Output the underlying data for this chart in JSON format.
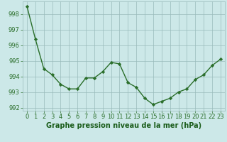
{
  "x": [
    0,
    1,
    2,
    3,
    4,
    5,
    6,
    7,
    8,
    9,
    10,
    11,
    12,
    13,
    14,
    15,
    16,
    17,
    18,
    19,
    20,
    21,
    22,
    23
  ],
  "y": [
    998.5,
    996.4,
    994.5,
    994.1,
    993.5,
    993.2,
    993.2,
    993.9,
    993.9,
    994.3,
    994.9,
    994.8,
    993.6,
    993.3,
    992.6,
    992.2,
    992.4,
    992.6,
    993.0,
    993.2,
    993.8,
    994.1,
    994.7,
    995.1
  ],
  "line_color": "#2a6e2a",
  "marker": "D",
  "marker_size": 2.2,
  "line_width": 1.0,
  "xlabel": "Graphe pression niveau de la mer (hPa)",
  "xlabel_fontsize": 7.0,
  "xlabel_color": "#1a5c1a",
  "background_color": "#cce8e8",
  "grid_color": "#99bbbb",
  "tick_fontsize": 6.0,
  "tick_color": "#2a6e2a",
  "ylim": [
    991.8,
    998.8
  ],
  "xlim": [
    -0.5,
    23.5
  ],
  "yticks": [
    992,
    993,
    994,
    995,
    996,
    997,
    998
  ],
  "xticks": [
    0,
    1,
    2,
    3,
    4,
    5,
    6,
    7,
    8,
    9,
    10,
    11,
    12,
    13,
    14,
    15,
    16,
    17,
    18,
    19,
    20,
    21,
    22,
    23
  ]
}
